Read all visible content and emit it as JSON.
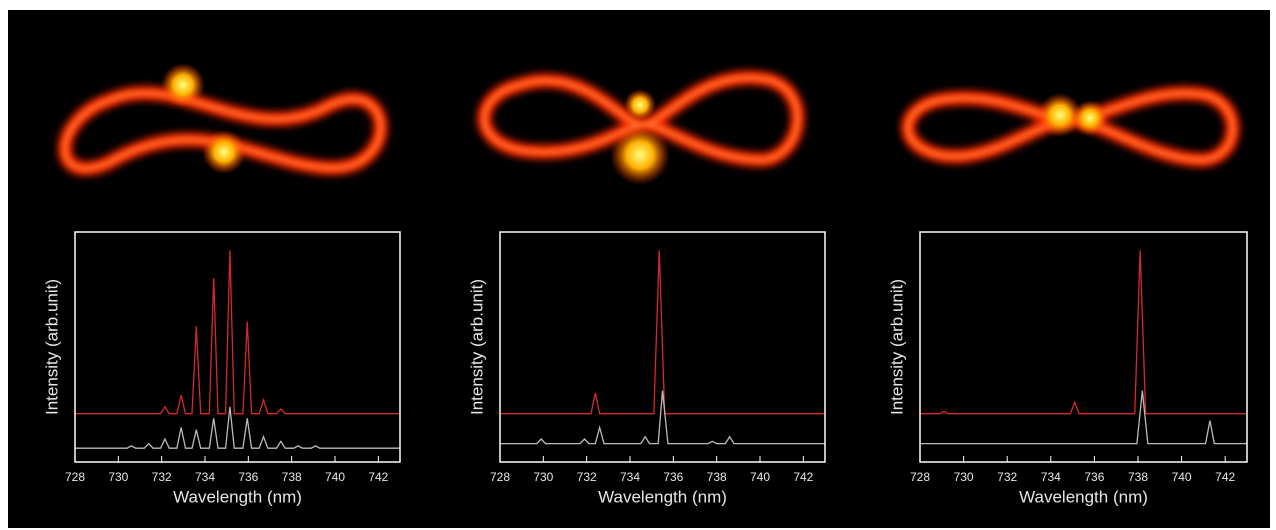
{
  "chart_data": [
    {
      "type": "line",
      "xlabel": "Wavelength (nm)",
      "ylabel": "Intensity (arb.unit)",
      "xlim": [
        728,
        743
      ],
      "xticks": [
        728,
        730,
        732,
        734,
        736,
        738,
        740,
        742
      ],
      "ylim": [
        0,
        1
      ],
      "series": [
        {
          "color": "#d42a2a",
          "x": [
            728,
            731.95,
            732.15,
            732.35,
            732.7,
            732.9,
            733.1,
            733.4,
            733.6,
            733.8,
            734.2,
            734.4,
            734.6,
            734.95,
            735.15,
            735.35,
            735.75,
            735.95,
            736.15,
            736.5,
            736.7,
            736.9,
            737.3,
            737.5,
            737.7,
            743
          ],
          "values": [
            0.21,
            0.21,
            0.24,
            0.21,
            0.21,
            0.29,
            0.21,
            0.21,
            0.59,
            0.21,
            0.21,
            0.8,
            0.21,
            0.21,
            0.92,
            0.21,
            0.21,
            0.61,
            0.21,
            0.21,
            0.27,
            0.21,
            0.21,
            0.23,
            0.21,
            0.21
          ]
        },
        {
          "color": "#bbbbbb",
          "x": [
            728,
            730.4,
            730.6,
            730.8,
            731.2,
            731.4,
            731.6,
            731.95,
            732.15,
            732.35,
            732.7,
            732.9,
            733.1,
            733.4,
            733.6,
            733.8,
            734.2,
            734.4,
            734.6,
            734.95,
            735.15,
            735.35,
            735.75,
            735.95,
            736.15,
            736.5,
            736.7,
            736.9,
            737.3,
            737.5,
            737.7,
            738.1,
            738.3,
            738.5,
            738.9,
            739.1,
            739.3,
            743
          ],
          "values": [
            0.06,
            0.06,
            0.07,
            0.06,
            0.06,
            0.08,
            0.06,
            0.06,
            0.1,
            0.06,
            0.06,
            0.15,
            0.06,
            0.06,
            0.14,
            0.06,
            0.06,
            0.19,
            0.06,
            0.06,
            0.24,
            0.06,
            0.06,
            0.19,
            0.06,
            0.06,
            0.11,
            0.06,
            0.06,
            0.09,
            0.06,
            0.06,
            0.07,
            0.06,
            0.06,
            0.07,
            0.06,
            0.06
          ]
        }
      ]
    },
    {
      "type": "line",
      "xlabel": "Wavelength (nm)",
      "ylabel": "Intensity (arb.unit)",
      "xlim": [
        728,
        743
      ],
      "xticks": [
        728,
        730,
        732,
        734,
        736,
        738,
        740,
        742
      ],
      "ylim": [
        0,
        1
      ],
      "series": [
        {
          "color": "#d42a2a",
          "x": [
            728,
            732.2,
            732.4,
            732.6,
            735.1,
            735.35,
            735.6,
            743
          ],
          "values": [
            0.21,
            0.21,
            0.3,
            0.21,
            0.21,
            0.92,
            0.21,
            0.21
          ]
        },
        {
          "color": "#bbbbbb",
          "x": [
            728,
            729.7,
            729.9,
            730.1,
            731.7,
            731.9,
            732.1,
            732.4,
            732.6,
            732.8,
            734.5,
            734.7,
            734.9,
            735.3,
            735.5,
            735.75,
            737.6,
            737.8,
            738.0,
            738.4,
            738.6,
            738.8,
            743
          ],
          "values": [
            0.08,
            0.08,
            0.1,
            0.08,
            0.08,
            0.1,
            0.08,
            0.08,
            0.15,
            0.08,
            0.08,
            0.11,
            0.08,
            0.08,
            0.31,
            0.08,
            0.08,
            0.09,
            0.08,
            0.08,
            0.11,
            0.08,
            0.08
          ]
        }
      ]
    },
    {
      "type": "line",
      "xlabel": "Wavelength (nm)",
      "ylabel": "Intensity (arb.unit)",
      "xlim": [
        728,
        743
      ],
      "xticks": [
        728,
        730,
        732,
        734,
        736,
        738,
        740,
        742
      ],
      "ylim": [
        0,
        1
      ],
      "series": [
        {
          "color": "#d42a2a",
          "x": [
            728,
            728.9,
            729.1,
            729.3,
            734.9,
            735.1,
            735.3,
            737.85,
            738.1,
            738.35,
            743
          ],
          "values": [
            0.21,
            0.21,
            0.22,
            0.21,
            0.21,
            0.26,
            0.21,
            0.21,
            0.92,
            0.21,
            0.21
          ]
        },
        {
          "color": "#bbbbbb",
          "x": [
            728,
            737.95,
            738.2,
            738.45,
            741.1,
            741.3,
            741.5,
            743
          ],
          "values": [
            0.08,
            0.08,
            0.31,
            0.08,
            0.08,
            0.18,
            0.08,
            0.08
          ]
        }
      ]
    }
  ]
}
